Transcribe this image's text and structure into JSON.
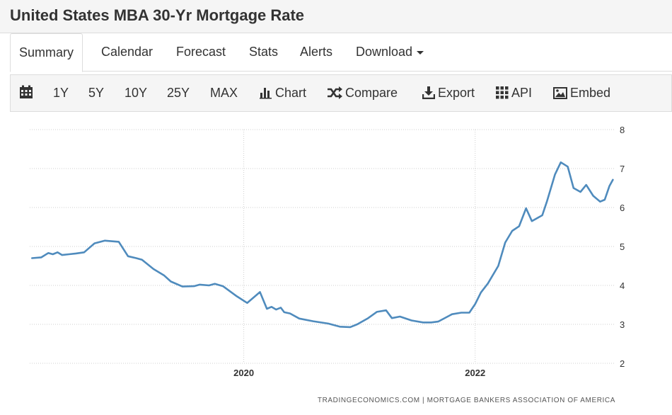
{
  "page": {
    "title": "United States MBA 30-Yr Mortgage Rate"
  },
  "tabs": [
    {
      "label": "Summary",
      "active": true
    },
    {
      "label": "Calendar"
    },
    {
      "label": "Forecast"
    },
    {
      "label": "Stats"
    },
    {
      "label": "Alerts"
    },
    {
      "label": "Download"
    }
  ],
  "toolbar": {
    "calendar_icon": "calendar-icon",
    "ranges": [
      "1Y",
      "5Y",
      "10Y",
      "25Y",
      "MAX"
    ],
    "chart_label": "Chart",
    "compare_label": "Compare",
    "export_label": "Export",
    "api_label": "API",
    "embed_label": "Embed"
  },
  "colors": {
    "line": "#4f8bbd",
    "grid": "#cfcfcf",
    "text": "#333333",
    "toolbar_bg": "#f5f5f5"
  },
  "chart_data": {
    "type": "line",
    "x_ticks": [
      2020,
      2022
    ],
    "ylim": [
      2,
      8
    ],
    "yticks": [
      2,
      3,
      4,
      5,
      6,
      7,
      8
    ],
    "x_range": [
      2018.15,
      2023.2
    ],
    "grid": true,
    "axis_side": "right",
    "source": "TRADINGECONOMICS.COM  |  MORTGAGE BANKERS ASSOCIATION OF AMERICA",
    "series": [
      {
        "x": [
          2018.17,
          2018.25,
          2018.31,
          2018.35,
          2018.39,
          2018.43,
          2018.49,
          2018.55,
          2018.62,
          2018.71,
          2018.8,
          2018.92,
          2019.0,
          2019.07,
          2019.12,
          2019.22,
          2019.31,
          2019.37,
          2019.47,
          2019.57,
          2019.62,
          2019.7,
          2019.75,
          2019.82,
          2019.94,
          2020.03,
          2020.14,
          2020.2,
          2020.24,
          2020.28,
          2020.32,
          2020.35,
          2020.4,
          2020.48,
          2020.6,
          2020.73,
          2020.83,
          2020.92,
          2020.98,
          2021.07,
          2021.15,
          2021.23,
          2021.28,
          2021.35,
          2021.45,
          2021.55,
          2021.62,
          2021.68,
          2021.8,
          2021.88,
          2021.95,
          2022.0,
          2022.05,
          2022.11,
          2022.2,
          2022.26,
          2022.32,
          2022.38,
          2022.44,
          2022.49,
          2022.58,
          2022.62,
          2022.69,
          2022.74,
          2022.8,
          2022.85,
          2022.91,
          2022.96,
          2023.02,
          2023.08,
          2023.12,
          2023.16,
          2023.19
        ],
        "values": [
          4.7,
          4.72,
          4.83,
          4.8,
          4.85,
          4.78,
          4.8,
          4.82,
          4.85,
          5.08,
          5.15,
          5.12,
          4.75,
          4.7,
          4.66,
          4.42,
          4.26,
          4.1,
          3.97,
          3.98,
          4.02,
          4.0,
          4.04,
          3.98,
          3.72,
          3.55,
          3.83,
          3.4,
          3.45,
          3.38,
          3.43,
          3.31,
          3.28,
          3.15,
          3.08,
          3.02,
          2.94,
          2.93,
          3.0,
          3.15,
          3.32,
          3.36,
          3.16,
          3.2,
          3.1,
          3.05,
          3.05,
          3.07,
          3.26,
          3.3,
          3.3,
          3.52,
          3.82,
          4.05,
          4.5,
          5.1,
          5.4,
          5.52,
          5.98,
          5.65,
          5.8,
          6.15,
          6.85,
          7.16,
          7.05,
          6.5,
          6.4,
          6.58,
          6.3,
          6.15,
          6.2,
          6.55,
          6.71
        ]
      }
    ]
  }
}
